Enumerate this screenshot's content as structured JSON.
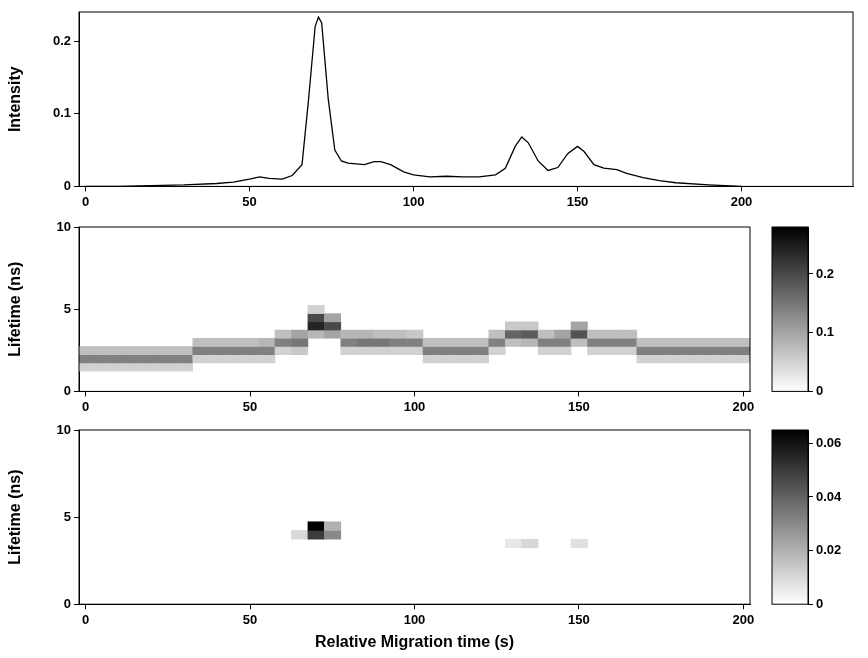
{
  "chart_data": [
    {
      "type": "line",
      "y_label": "Intensity",
      "color": "#000000",
      "grid": false,
      "xlim": [
        -2,
        234
      ],
      "xticks": [
        0,
        50,
        100,
        150,
        200
      ],
      "ylim": [
        0,
        0.24
      ],
      "yticks": [
        0,
        0.1,
        0.2
      ],
      "x": [
        0,
        10,
        20,
        30,
        40,
        45,
        50,
        53,
        56,
        60,
        63,
        66,
        68,
        70,
        71,
        72,
        74,
        76,
        78,
        80,
        85,
        88,
        90,
        93,
        97,
        100,
        105,
        110,
        115,
        120,
        125,
        128,
        131,
        133,
        135,
        138,
        141,
        144,
        147,
        150,
        152,
        155,
        158,
        162,
        165,
        170,
        175,
        180,
        190,
        200
      ],
      "values": [
        0,
        0,
        0.001,
        0.002,
        0.004,
        0.006,
        0.01,
        0.013,
        0.011,
        0.01,
        0.015,
        0.03,
        0.12,
        0.22,
        0.233,
        0.225,
        0.12,
        0.05,
        0.035,
        0.032,
        0.03,
        0.034,
        0.034,
        0.03,
        0.02,
        0.016,
        0.013,
        0.014,
        0.013,
        0.013,
        0.016,
        0.025,
        0.055,
        0.068,
        0.06,
        0.035,
        0.022,
        0.026,
        0.045,
        0.055,
        0.048,
        0.03,
        0.025,
        0.023,
        0.018,
        0.012,
        0.008,
        0.005,
        0.002,
        0
      ]
    },
    {
      "type": "heatmap",
      "y_label": "Lifetime (ns)",
      "grid": false,
      "xlim": [
        -2,
        202
      ],
      "xticks": [
        0,
        50,
        100,
        150,
        200
      ],
      "ylim": [
        0,
        10
      ],
      "yticks": [
        0,
        5,
        10
      ],
      "color_range": [
        0,
        0.28
      ],
      "color_ticks": [
        0,
        0.1,
        0.2
      ],
      "cells": [
        [
          0,
          1.5,
          0.05
        ],
        [
          0,
          2.0,
          0.14
        ],
        [
          0,
          2.5,
          0.07
        ],
        [
          5,
          1.5,
          0.05
        ],
        [
          5,
          2.0,
          0.14
        ],
        [
          5,
          2.5,
          0.07
        ],
        [
          10,
          1.5,
          0.05
        ],
        [
          10,
          2.0,
          0.14
        ],
        [
          10,
          2.5,
          0.07
        ],
        [
          15,
          1.5,
          0.05
        ],
        [
          15,
          2.0,
          0.14
        ],
        [
          15,
          2.5,
          0.07
        ],
        [
          20,
          1.5,
          0.05
        ],
        [
          20,
          2.0,
          0.14
        ],
        [
          20,
          2.5,
          0.07
        ],
        [
          25,
          1.5,
          0.05
        ],
        [
          25,
          2.0,
          0.14
        ],
        [
          25,
          2.5,
          0.07
        ],
        [
          30,
          1.5,
          0.05
        ],
        [
          30,
          2.0,
          0.14
        ],
        [
          30,
          2.5,
          0.07
        ],
        [
          35,
          2.0,
          0.05
        ],
        [
          35,
          2.5,
          0.14
        ],
        [
          35,
          3.0,
          0.07
        ],
        [
          40,
          2.0,
          0.05
        ],
        [
          40,
          2.5,
          0.14
        ],
        [
          40,
          3.0,
          0.07
        ],
        [
          45,
          2.0,
          0.05
        ],
        [
          45,
          2.5,
          0.14
        ],
        [
          45,
          3.0,
          0.07
        ],
        [
          50,
          2.0,
          0.05
        ],
        [
          50,
          2.5,
          0.14
        ],
        [
          50,
          3.0,
          0.07
        ],
        [
          55,
          2.0,
          0.05
        ],
        [
          55,
          2.5,
          0.14
        ],
        [
          55,
          3.0,
          0.08
        ],
        [
          60,
          2.5,
          0.05
        ],
        [
          60,
          3.0,
          0.14
        ],
        [
          60,
          3.5,
          0.07
        ],
        [
          65,
          2.5,
          0.06
        ],
        [
          65,
          3.0,
          0.15
        ],
        [
          65,
          3.5,
          0.1
        ],
        [
          70,
          3.5,
          0.08
        ],
        [
          70,
          4.0,
          0.24
        ],
        [
          70,
          4.5,
          0.2
        ],
        [
          70,
          5.0,
          0.05
        ],
        [
          75,
          3.5,
          0.1
        ],
        [
          75,
          4.0,
          0.2
        ],
        [
          75,
          4.5,
          0.1
        ],
        [
          80,
          2.5,
          0.05
        ],
        [
          80,
          3.0,
          0.14
        ],
        [
          80,
          3.5,
          0.08
        ],
        [
          85,
          2.5,
          0.05
        ],
        [
          85,
          3.0,
          0.15
        ],
        [
          85,
          3.5,
          0.08
        ],
        [
          90,
          2.5,
          0.05
        ],
        [
          90,
          3.0,
          0.15
        ],
        [
          90,
          3.5,
          0.07
        ],
        [
          95,
          2.5,
          0.05
        ],
        [
          95,
          3.0,
          0.14
        ],
        [
          95,
          3.5,
          0.07
        ],
        [
          100,
          2.5,
          0.05
        ],
        [
          100,
          3.0,
          0.14
        ],
        [
          100,
          3.5,
          0.06
        ],
        [
          105,
          2.0,
          0.05
        ],
        [
          105,
          2.5,
          0.14
        ],
        [
          105,
          3.0,
          0.07
        ],
        [
          110,
          2.0,
          0.05
        ],
        [
          110,
          2.5,
          0.14
        ],
        [
          110,
          3.0,
          0.07
        ],
        [
          115,
          2.0,
          0.05
        ],
        [
          115,
          2.5,
          0.14
        ],
        [
          115,
          3.0,
          0.07
        ],
        [
          120,
          2.0,
          0.05
        ],
        [
          120,
          2.5,
          0.14
        ],
        [
          120,
          3.0,
          0.07
        ],
        [
          125,
          2.5,
          0.05
        ],
        [
          125,
          3.0,
          0.14
        ],
        [
          125,
          3.5,
          0.07
        ],
        [
          130,
          3.0,
          0.07
        ],
        [
          130,
          3.5,
          0.17
        ],
        [
          130,
          4.0,
          0.06
        ],
        [
          135,
          3.0,
          0.08
        ],
        [
          135,
          3.5,
          0.18
        ],
        [
          135,
          4.0,
          0.06
        ],
        [
          140,
          2.5,
          0.05
        ],
        [
          140,
          3.0,
          0.14
        ],
        [
          140,
          3.5,
          0.07
        ],
        [
          145,
          2.5,
          0.05
        ],
        [
          145,
          3.0,
          0.14
        ],
        [
          145,
          3.5,
          0.1
        ],
        [
          150,
          3.0,
          0.07
        ],
        [
          150,
          3.5,
          0.19
        ],
        [
          150,
          4.0,
          0.1
        ],
        [
          155,
          2.5,
          0.05
        ],
        [
          155,
          3.0,
          0.14
        ],
        [
          155,
          3.5,
          0.07
        ],
        [
          160,
          2.5,
          0.05
        ],
        [
          160,
          3.0,
          0.14
        ],
        [
          160,
          3.5,
          0.07
        ],
        [
          165,
          2.5,
          0.05
        ],
        [
          165,
          3.0,
          0.14
        ],
        [
          165,
          3.5,
          0.07
        ],
        [
          170,
          2.0,
          0.05
        ],
        [
          170,
          2.5,
          0.14
        ],
        [
          170,
          3.0,
          0.07
        ],
        [
          175,
          2.0,
          0.05
        ],
        [
          175,
          2.5,
          0.14
        ],
        [
          175,
          3.0,
          0.07
        ],
        [
          180,
          2.0,
          0.05
        ],
        [
          180,
          2.5,
          0.14
        ],
        [
          180,
          3.0,
          0.07
        ],
        [
          185,
          2.0,
          0.05
        ],
        [
          185,
          2.5,
          0.14
        ],
        [
          185,
          3.0,
          0.07
        ],
        [
          190,
          2.0,
          0.05
        ],
        [
          190,
          2.5,
          0.14
        ],
        [
          190,
          3.0,
          0.07
        ],
        [
          195,
          2.0,
          0.05
        ],
        [
          195,
          2.5,
          0.14
        ],
        [
          195,
          3.0,
          0.07
        ],
        [
          200,
          2.0,
          0.05
        ],
        [
          200,
          2.5,
          0.14
        ],
        [
          200,
          3.0,
          0.07
        ]
      ]
    },
    {
      "type": "heatmap",
      "x_label": "Relative Migration time (s)",
      "y_label": "Lifetime (ns)",
      "grid": false,
      "xlim": [
        -2,
        202
      ],
      "xticks": [
        0,
        50,
        100,
        150,
        200
      ],
      "ylim": [
        0,
        10
      ],
      "yticks": [
        0,
        5,
        10
      ],
      "color_range": [
        0,
        0.065
      ],
      "color_ticks": [
        0,
        0.02,
        0.04,
        0.06
      ],
      "cells": [
        [
          65,
          4.0,
          0.01
        ],
        [
          70,
          4.0,
          0.05
        ],
        [
          70,
          4.5,
          0.065
        ],
        [
          75,
          4.0,
          0.03
        ],
        [
          75,
          4.5,
          0.02
        ],
        [
          130,
          3.5,
          0.006
        ],
        [
          135,
          3.5,
          0.01
        ],
        [
          150,
          3.5,
          0.008
        ]
      ]
    }
  ]
}
